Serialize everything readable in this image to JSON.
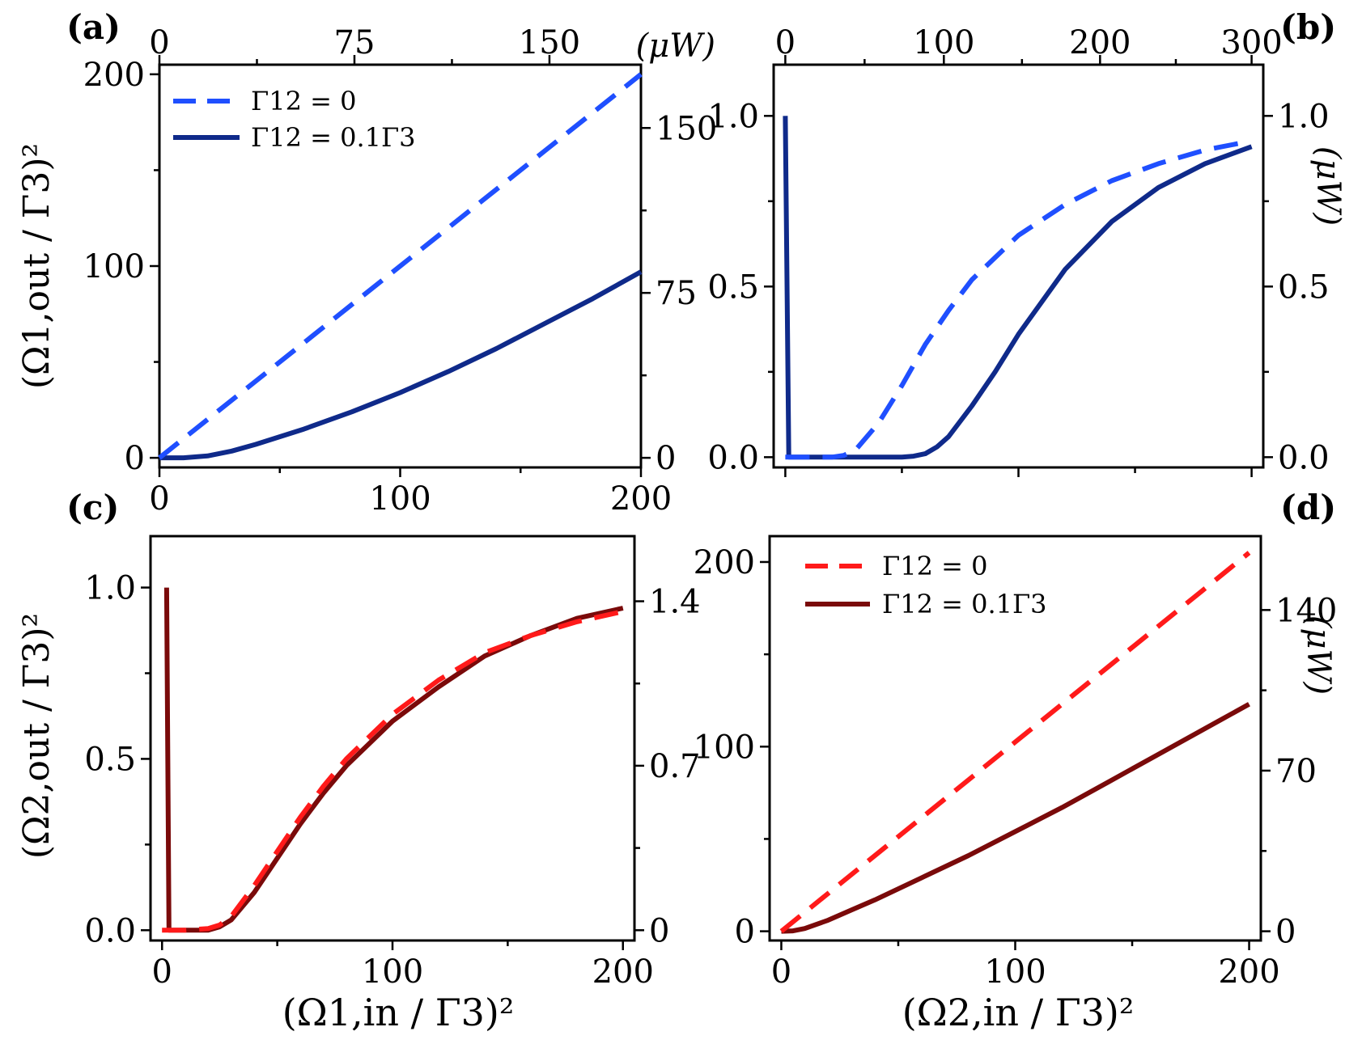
{
  "figure": {
    "xlabel_panels_ac": "(Ω1,in / Γ3)²",
    "xlabel_panels_bd": "(Ω2,in / Γ3)²",
    "ylabel_panels_ab": "(Ω1,out / Γ3)²",
    "ylabel_panels_cd": "(Ω2,out / Γ3)²",
    "unit_label": "(μW)"
  },
  "colors": {
    "blue_dashed": "#1f4fff",
    "blue_solid": "#0f2a8a",
    "red_dashed": "#ff1a1a",
    "red_solid": "#7a0a0a"
  },
  "chart_data": [
    {
      "panel": "(a)",
      "type": "line",
      "xlim": [
        0,
        200
      ],
      "ylim": [
        -5,
        205
      ],
      "x_ticks": [
        "0",
        "100",
        "200"
      ],
      "y_ticks": [
        {
          "v": 0,
          "label": "0"
        },
        {
          "v": 100,
          "label": "100"
        },
        {
          "v": 200,
          "label": "200"
        }
      ],
      "top_axis": {
        "label": "(μW)",
        "ticks": [
          {
            "v": 0,
            "label": "0"
          },
          {
            "v": 81,
            "label": "75"
          },
          {
            "v": 162,
            "label": "150"
          }
        ]
      },
      "right_axis": {
        "ticks": [
          {
            "v": 0,
            "label": "0"
          },
          {
            "v": 86,
            "label": "75"
          },
          {
            "v": 172,
            "label": "150"
          }
        ]
      },
      "legend": [
        "Γ12 = 0",
        "Γ12 = 0.1Γ3"
      ],
      "series": [
        {
          "name": "Γ12 = 0",
          "style": "dashed",
          "x": [
            0,
            20,
            40,
            60,
            80,
            100,
            120,
            140,
            160,
            180,
            200
          ],
          "y": [
            0,
            20,
            40,
            60,
            80,
            100,
            120,
            140,
            160,
            180,
            200
          ]
        },
        {
          "name": "Γ12 = 0.1Γ3",
          "style": "solid",
          "x": [
            0,
            10,
            20,
            30,
            40,
            60,
            80,
            100,
            120,
            140,
            160,
            180,
            200
          ],
          "y": [
            0,
            0,
            1,
            3.5,
            7,
            15,
            24,
            34,
            45,
            57,
            70,
            83,
            97
          ]
        }
      ]
    },
    {
      "panel": "(b)",
      "type": "line",
      "xlim": [
        -5,
        205
      ],
      "ylim": [
        -0.03,
        1.15
      ],
      "x_ticks": [],
      "y_ticks": [
        {
          "v": 0,
          "label": "0.0"
        },
        {
          "v": 0.5,
          "label": "0.5"
        },
        {
          "v": 1.0,
          "label": "1.0"
        }
      ],
      "top_axis": {
        "label": "",
        "ticks": [
          {
            "v": 0,
            "label": "0"
          },
          {
            "v": 68,
            "label": "100"
          },
          {
            "v": 135,
            "label": "200"
          },
          {
            "v": 200,
            "label": "300"
          }
        ]
      },
      "right_axis": {
        "label": "(μW)",
        "ticks": [
          {
            "v": 0,
            "label": "0.0"
          },
          {
            "v": 0.5,
            "label": "0.5"
          },
          {
            "v": 1.0,
            "label": "1.0"
          }
        ]
      },
      "series": [
        {
          "name": "Γ12 = 0",
          "style": "dashed",
          "x": [
            0,
            10,
            20,
            25,
            30,
            40,
            50,
            60,
            70,
            80,
            100,
            120,
            140,
            160,
            180,
            195
          ],
          "y": [
            0,
            0,
            0,
            0.005,
            0.02,
            0.1,
            0.21,
            0.33,
            0.43,
            0.52,
            0.65,
            0.74,
            0.81,
            0.86,
            0.9,
            0.92
          ]
        },
        {
          "name": "Γ12 = 0.1Γ3",
          "style": "solid",
          "x": [
            0,
            0.001,
            1.5,
            10,
            30,
            50,
            55,
            60,
            65,
            70,
            80,
            90,
            100,
            120,
            140,
            160,
            180,
            200
          ],
          "y": [
            1.0,
            1.0,
            0,
            0,
            0,
            0,
            0.003,
            0.01,
            0.03,
            0.06,
            0.15,
            0.25,
            0.36,
            0.55,
            0.69,
            0.79,
            0.86,
            0.91
          ]
        }
      ]
    },
    {
      "panel": "(c)",
      "type": "line",
      "xlim": [
        -5,
        205
      ],
      "ylim": [
        -0.03,
        1.15
      ],
      "x_ticks": [
        "0",
        "100",
        "200"
      ],
      "y_ticks": [
        {
          "v": 0,
          "label": "0.0"
        },
        {
          "v": 0.5,
          "label": "0.5"
        },
        {
          "v": 1.0,
          "label": "1.0"
        }
      ],
      "right_axis": {
        "ticks": [
          {
            "v": 0,
            "label": "0"
          },
          {
            "v": 0.48,
            "label": "0.7"
          },
          {
            "v": 0.96,
            "label": "1.4"
          }
        ]
      },
      "series": [
        {
          "name": "Γ12 = 0",
          "style": "dashed",
          "x": [
            0,
            10,
            20,
            25,
            30,
            40,
            50,
            60,
            70,
            80,
            100,
            120,
            140,
            160,
            180,
            200
          ],
          "y": [
            0,
            0,
            0.005,
            0.015,
            0.04,
            0.13,
            0.23,
            0.33,
            0.42,
            0.5,
            0.63,
            0.73,
            0.81,
            0.86,
            0.9,
            0.93
          ]
        },
        {
          "name": "Γ12 = 0.1Γ3",
          "style": "solid",
          "x": [
            2,
            2.001,
            3,
            10,
            20,
            25,
            30,
            40,
            50,
            60,
            70,
            80,
            100,
            120,
            140,
            160,
            180,
            200
          ],
          "y": [
            1.0,
            1.0,
            0,
            0,
            0,
            0.01,
            0.03,
            0.11,
            0.21,
            0.31,
            0.4,
            0.48,
            0.61,
            0.71,
            0.8,
            0.86,
            0.91,
            0.94
          ]
        }
      ]
    },
    {
      "panel": "(d)",
      "type": "line",
      "xlim": [
        -5,
        205
      ],
      "ylim": [
        -5,
        214
      ],
      "x_ticks": [
        "0",
        "100",
        "200"
      ],
      "y_ticks": [
        {
          "v": 0,
          "label": "0"
        },
        {
          "v": 100,
          "label": "100"
        },
        {
          "v": 200,
          "label": "200"
        }
      ],
      "right_axis": {
        "label": "(μW)",
        "ticks": [
          {
            "v": 0,
            "label": "0"
          },
          {
            "v": 87,
            "label": "70"
          },
          {
            "v": 174,
            "label": "140"
          }
        ]
      },
      "legend": [
        "Γ12 = 0",
        "Γ12 = 0.1Γ3"
      ],
      "series": [
        {
          "name": "Γ12 = 0",
          "style": "dashed",
          "x": [
            0,
            20,
            40,
            60,
            80,
            100,
            120,
            140,
            160,
            180,
            200
          ],
          "y": [
            0,
            20.5,
            41,
            61.5,
            82,
            102.5,
            123,
            143.5,
            164,
            184.5,
            205
          ]
        },
        {
          "name": "Γ12 = 0.1Γ3",
          "style": "solid",
          "x": [
            0,
            5,
            10,
            20,
            30,
            40,
            60,
            80,
            100,
            120,
            140,
            160,
            180,
            200
          ],
          "y": [
            0,
            0.2,
            1.5,
            6,
            11.5,
            17,
            29,
            41,
            54,
            67,
            81,
            95,
            109,
            123
          ]
        }
      ]
    }
  ]
}
